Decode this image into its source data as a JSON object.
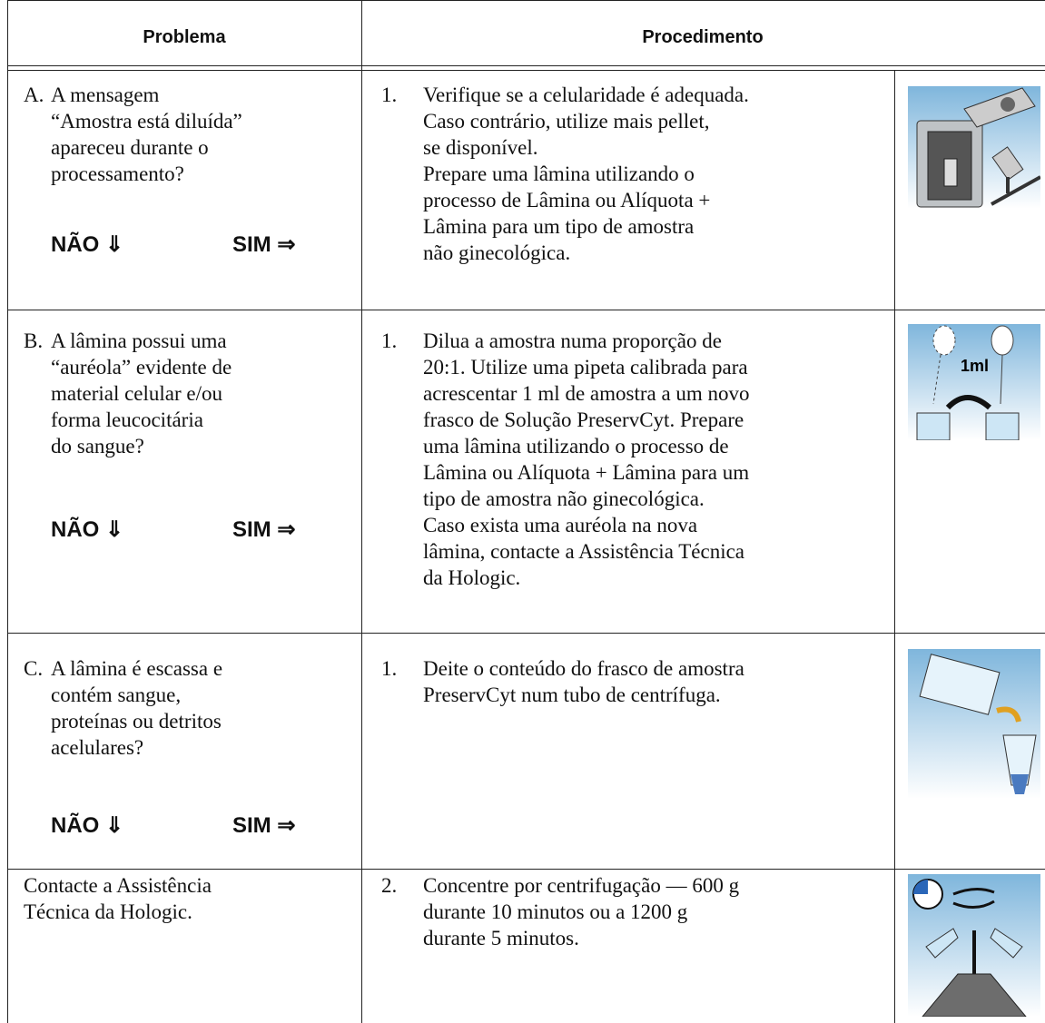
{
  "header": {
    "problem": "Problema",
    "procedure": "Procedimento"
  },
  "rows": [
    {
      "letter": "A.",
      "problem": [
        "A mensagem",
        "“Amostra está diluída”",
        "apareceu durante o",
        "processamento?"
      ],
      "no": "NÃO ⇓",
      "yes": "SIM ⇒",
      "step": "1.",
      "procedure": [
        "Verifique se a celularidade é adequada.",
        "Caso contrário, utilize mais pellet,",
        "se disponível.",
        "Prepare uma lâmina utilizando o",
        "processo de Lâmina ou Alíquota +",
        "Lâmina para um tipo de amostra",
        "não ginecológica."
      ]
    },
    {
      "letter": "B.",
      "problem": [
        "A lâmina possui uma",
        "“auréola” evidente de",
        "material celular e/ou",
        "forma leucocitária",
        "do sangue?"
      ],
      "no": "NÃO ⇓",
      "yes": "SIM ⇒",
      "step": "1.",
      "procedure": [
        "Dilua a amostra numa proporção de",
        "20:1. Utilize uma pipeta calibrada para",
        "acrescentar 1 ml de amostra a um novo",
        "frasco de Solução PreservCyt. Prepare",
        "uma lâmina utilizando o processo de",
        "Lâmina ou Alíquota + Lâmina para um",
        "tipo de amostra não ginecológica.",
        "Caso exista uma auréola na nova",
        "lâmina, contacte a Assistência Técnica",
        "da Hologic."
      ],
      "icon_label": "1ml"
    },
    {
      "letter": "C.",
      "problem": [
        "A lâmina é escassa e",
        "contém sangue,",
        "proteínas ou detritos",
        "acelulares?"
      ],
      "no": "NÃO ⇓",
      "yes": "SIM ⇒",
      "step": "1.",
      "procedure": [
        "Deite o conteúdo do frasco de amostra",
        "PreservCyt num tubo de centrífuga."
      ]
    },
    {
      "problem": [
        "Contacte a Assistência",
        "Técnica da Hologic."
      ],
      "step": "2.",
      "procedure": [
        "Concentre por centrifugação — 600 g",
        "durante 10 minutos ou a 1200 g",
        "durante 5 minutos."
      ]
    }
  ]
}
